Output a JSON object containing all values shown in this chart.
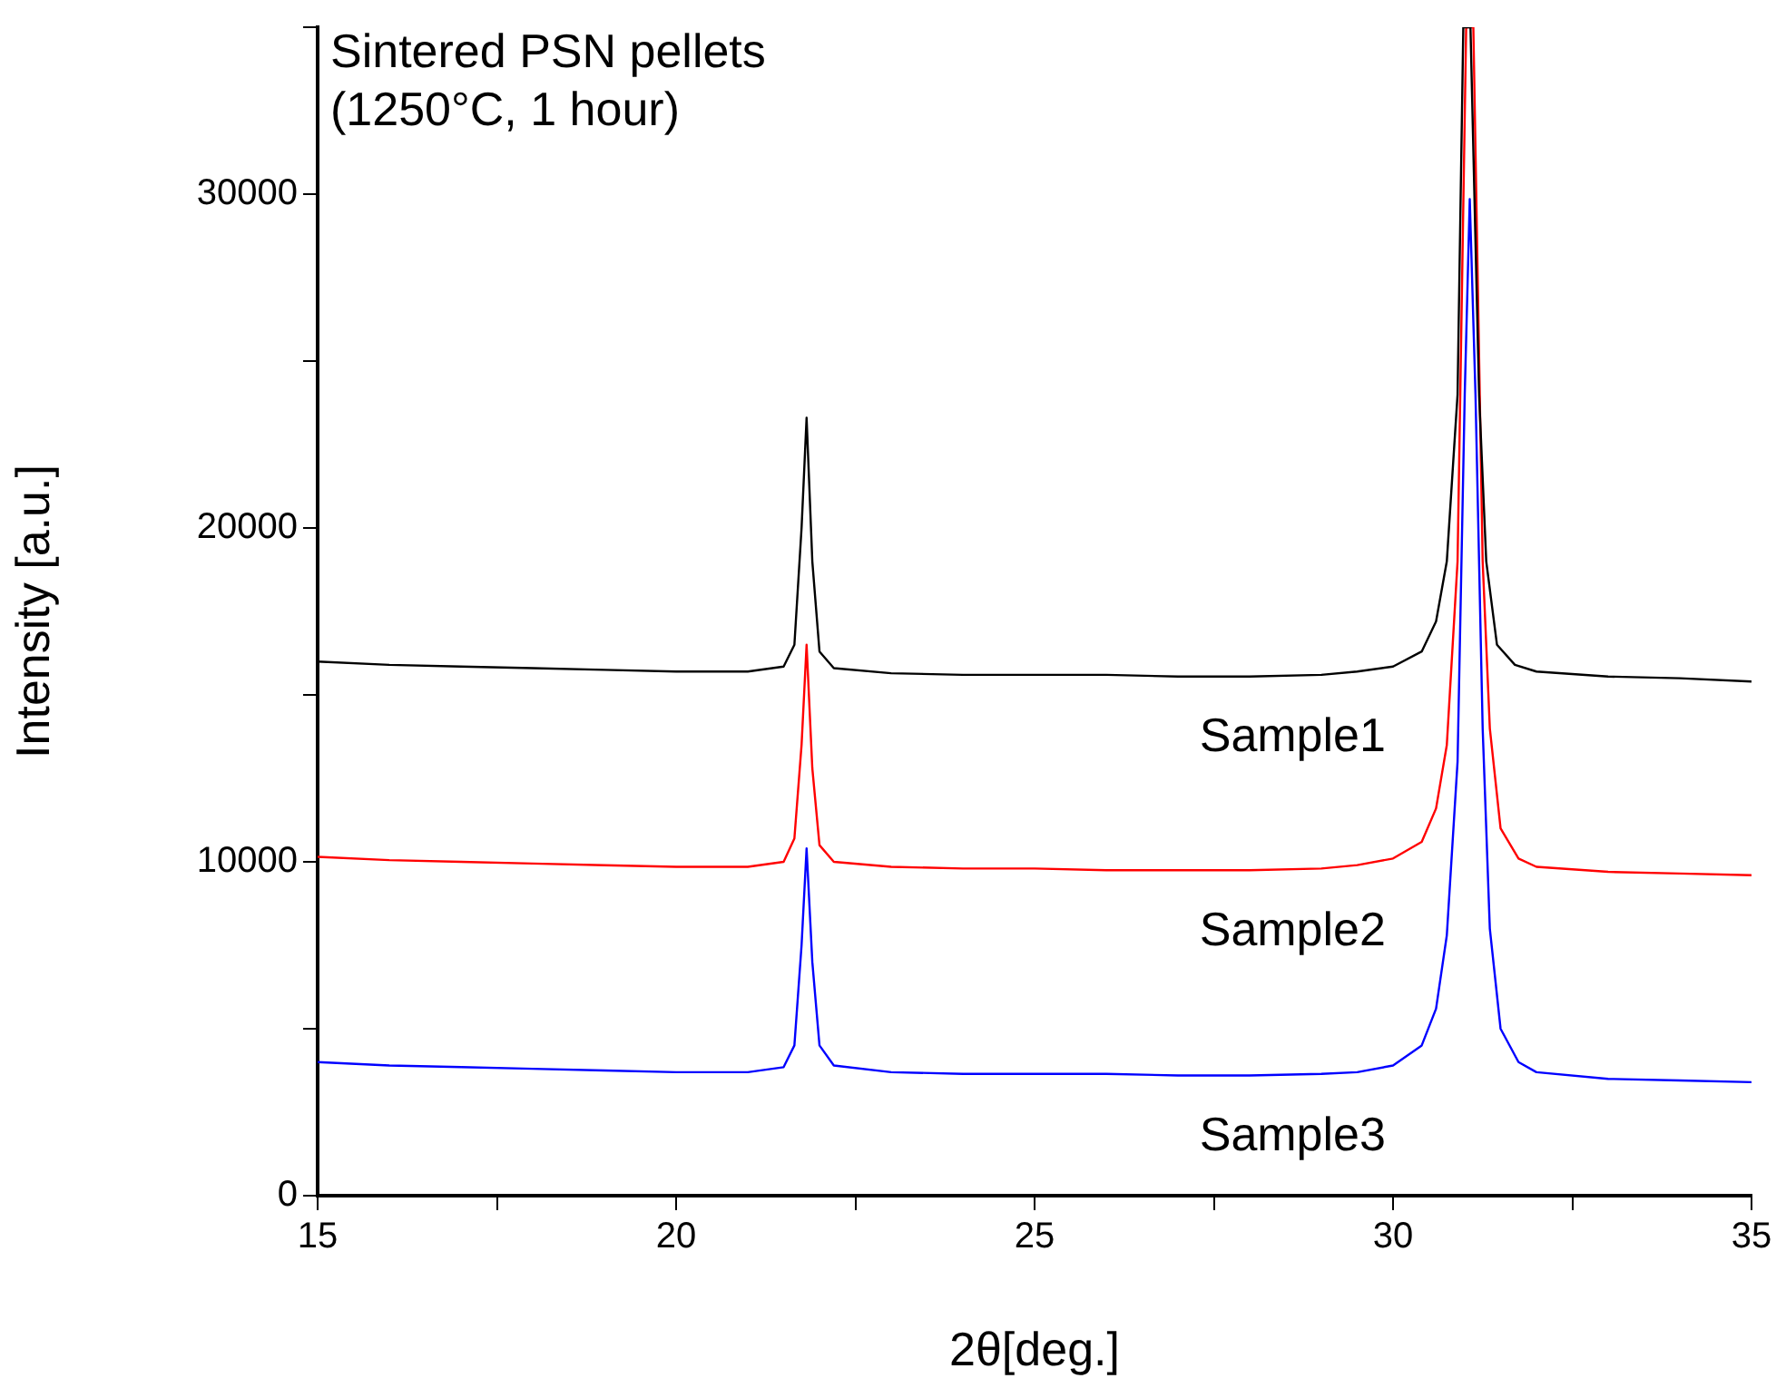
{
  "chart_data": {
    "type": "line",
    "xlabel": "2θ[deg.]",
    "ylabel": "Intensity [a.u.]",
    "annotations": [
      "Sintered PSN pellets",
      "(1250°C, 1 hour)"
    ],
    "xlim": [
      15,
      35
    ],
    "xticks": [
      15,
      {
        "value": 17.5,
        "label": null
      },
      20,
      {
        "value": 22.5,
        "label": null
      },
      25,
      {
        "value": 27.5,
        "label": null
      },
      30,
      {
        "value": 32.5,
        "label": null
      },
      35
    ],
    "ylim": [
      0,
      35000
    ],
    "yticks": [
      0,
      {
        "value": 5000,
        "label": null
      },
      10000,
      {
        "value": 15000,
        "label": null
      },
      20000,
      {
        "value": 25000,
        "label": null
      },
      30000,
      {
        "value": 35000,
        "label": null
      }
    ],
    "grid": false,
    "series": [
      {
        "name": "Sample1",
        "color": "#000000",
        "x": [
          15,
          16,
          17,
          18,
          19,
          20,
          21,
          21.5,
          21.65,
          21.75,
          21.82,
          21.9,
          22.0,
          22.2,
          23,
          24,
          25,
          26,
          27,
          28,
          29,
          29.5,
          30,
          30.4,
          30.6,
          30.75,
          30.9,
          30.98,
          31.08,
          31.2,
          31.3,
          31.45,
          31.7,
          32,
          33,
          34,
          35
        ],
        "values": [
          16000,
          15900,
          15850,
          15800,
          15750,
          15700,
          15700,
          15850,
          16500,
          20000,
          23300,
          19000,
          16300,
          15800,
          15650,
          15600,
          15600,
          15600,
          15550,
          15550,
          15600,
          15700,
          15850,
          16300,
          17200,
          19000,
          24000,
          35000,
          35000,
          24000,
          19000,
          16500,
          15900,
          15700,
          15550,
          15500,
          15400
        ]
      },
      {
        "name": "Sample2",
        "color": "#ff0000",
        "x": [
          15,
          16,
          17,
          18,
          19,
          20,
          21,
          21.5,
          21.65,
          21.75,
          21.82,
          21.9,
          22.0,
          22.2,
          23,
          24,
          25,
          26,
          27,
          28,
          29,
          29.5,
          30,
          30.4,
          30.6,
          30.75,
          30.9,
          31.02,
          31.12,
          31.25,
          31.35,
          31.5,
          31.75,
          32,
          33,
          34,
          35
        ],
        "values": [
          10150,
          10050,
          10000,
          9950,
          9900,
          9850,
          9850,
          10000,
          10700,
          13500,
          16500,
          12800,
          10500,
          10000,
          9850,
          9800,
          9800,
          9750,
          9750,
          9750,
          9800,
          9900,
          10100,
          10600,
          11600,
          13500,
          19000,
          35000,
          35000,
          19000,
          14000,
          11000,
          10100,
          9850,
          9700,
          9650,
          9600
        ]
      },
      {
        "name": "Sample3",
        "color": "#0000ff",
        "x": [
          15,
          16,
          17,
          18,
          19,
          20,
          21,
          21.5,
          21.65,
          21.75,
          21.82,
          21.9,
          22.0,
          22.2,
          23,
          24,
          25,
          26,
          27,
          28,
          29,
          29.5,
          30,
          30.4,
          30.6,
          30.75,
          30.9,
          31.0,
          31.07,
          31.15,
          31.25,
          31.35,
          31.5,
          31.75,
          32,
          33,
          34,
          35
        ],
        "values": [
          4000,
          3900,
          3850,
          3800,
          3750,
          3700,
          3700,
          3850,
          4500,
          7500,
          10400,
          7000,
          4500,
          3900,
          3700,
          3650,
          3650,
          3650,
          3600,
          3600,
          3650,
          3700,
          3900,
          4500,
          5600,
          7800,
          13000,
          24000,
          29850,
          24000,
          14000,
          8000,
          5000,
          4000,
          3700,
          3500,
          3450,
          3400
        ]
      }
    ]
  }
}
